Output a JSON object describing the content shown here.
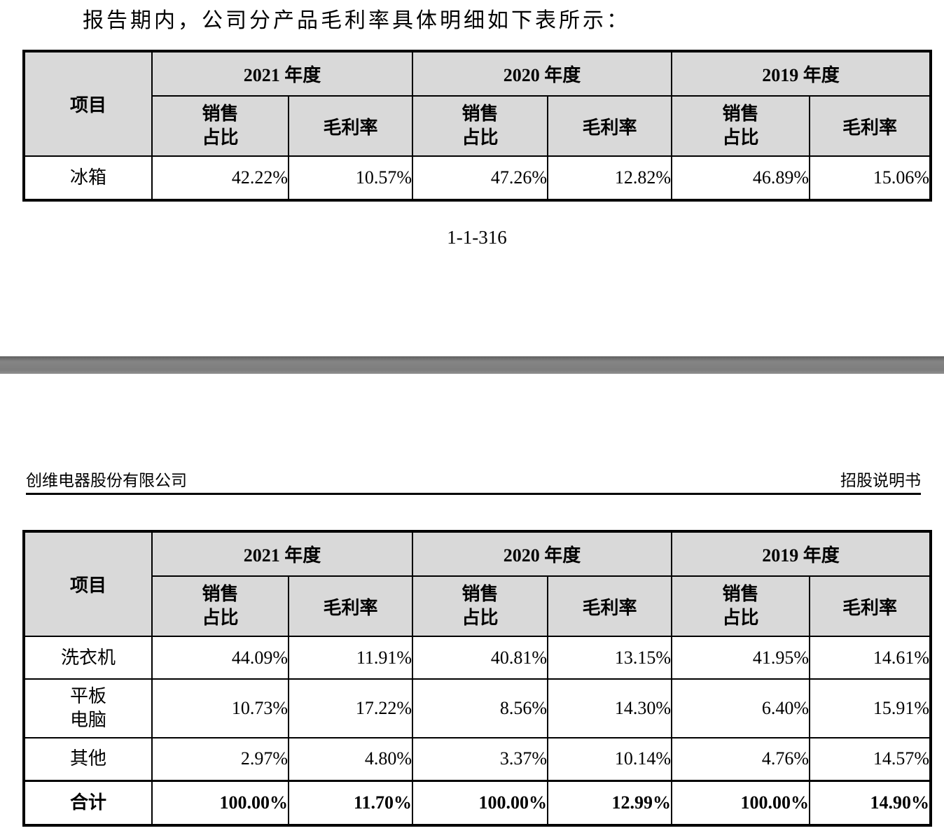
{
  "page": {
    "intro_text": "报告期内，公司分产品毛利率具体明细如下表所示：",
    "page_number": "1-1-316",
    "header": {
      "company_name": "创维电器股份有限公司",
      "doc_title": "招股说明书"
    },
    "colors": {
      "table_header_bg": "#d9d9d9",
      "divider_gray": "#7d7d7d",
      "text": "#000000"
    }
  },
  "table_common": {
    "item_header": "项目",
    "years": [
      "2021 年度",
      "2020 年度",
      "2019 年度"
    ],
    "sales_share_label": "销售\n占比",
    "gross_margin_label": "毛利率"
  },
  "table1": {
    "rows": [
      {
        "item": "冰箱",
        "values": [
          "42.22%",
          "10.57%",
          "47.26%",
          "12.82%",
          "46.89%",
          "15.06%"
        ]
      }
    ]
  },
  "table2": {
    "rows": [
      {
        "item": "洗衣机",
        "values": [
          "44.09%",
          "11.91%",
          "40.81%",
          "13.15%",
          "41.95%",
          "14.61%"
        ]
      },
      {
        "item": "平板\n电脑",
        "values": [
          "10.73%",
          "17.22%",
          "8.56%",
          "14.30%",
          "6.40%",
          "15.91%"
        ]
      },
      {
        "item": "其他",
        "values": [
          "2.97%",
          "4.80%",
          "3.37%",
          "10.14%",
          "4.76%",
          "14.57%"
        ]
      },
      {
        "item": "合计",
        "values": [
          "100.00%",
          "11.70%",
          "100.00%",
          "12.99%",
          "100.00%",
          "14.90%"
        ],
        "bold": true
      }
    ]
  }
}
